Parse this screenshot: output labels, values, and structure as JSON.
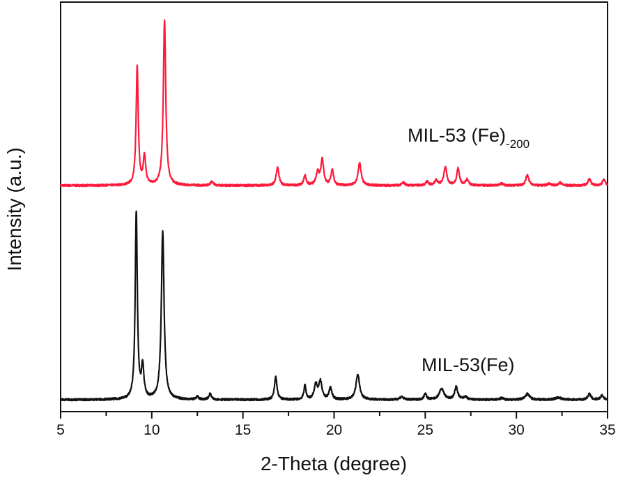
{
  "chart_data": {
    "type": "line",
    "xlabel": "2-Theta (degree)",
    "ylabel": "Intensity (a.u.)",
    "xlim": [
      5,
      35
    ],
    "ylim": [
      0,
      100
    ],
    "xticks": [
      5,
      10,
      15,
      20,
      25,
      30,
      35
    ],
    "minor_xtick_step": 2.5,
    "yticks": [],
    "grid": false,
    "legend": "none (inline labels)",
    "series": [
      {
        "name": "MIL-53 (Fe)",
        "name_subscript": "-200",
        "color": "#ff1a3c",
        "baseline": 55.2,
        "peaks": [
          [
            9.2,
            29.1,
            0.07
          ],
          [
            9.6,
            6.8,
            0.08
          ],
          [
            10.7,
            40.2,
            0.08
          ],
          [
            13.3,
            0.9,
            0.1
          ],
          [
            16.9,
            4.4,
            0.09
          ],
          [
            18.4,
            2.4,
            0.08
          ],
          [
            19.1,
            3.1,
            0.1
          ],
          [
            19.35,
            6.3,
            0.09
          ],
          [
            19.9,
            3.9,
            0.08
          ],
          [
            21.4,
            5.5,
            0.1
          ],
          [
            23.8,
            0.7,
            0.1
          ],
          [
            25.1,
            0.9,
            0.1
          ],
          [
            25.6,
            1.2,
            0.1
          ],
          [
            26.1,
            4.4,
            0.1
          ],
          [
            26.8,
            4.1,
            0.09
          ],
          [
            27.3,
            1.4,
            0.1
          ],
          [
            29.2,
            0.5,
            0.1
          ],
          [
            30.6,
            2.6,
            0.1
          ],
          [
            31.8,
            0.5,
            0.1
          ],
          [
            32.4,
            0.7,
            0.1
          ],
          [
            34.0,
            1.5,
            0.1
          ],
          [
            34.8,
            1.4,
            0.1
          ]
        ]
      },
      {
        "name": "MIL-53(Fe)",
        "name_subscript": "",
        "color": "#111111",
        "baseline": 2.9,
        "peaks": [
          [
            9.15,
            45.7,
            0.07
          ],
          [
            9.5,
            7.7,
            0.08
          ],
          [
            10.6,
            41.0,
            0.09
          ],
          [
            12.5,
            0.7,
            0.08
          ],
          [
            13.2,
            1.4,
            0.08
          ],
          [
            16.8,
            5.6,
            0.08
          ],
          [
            18.4,
            3.4,
            0.07
          ],
          [
            19.0,
            3.7,
            0.1
          ],
          [
            19.25,
            4.3,
            0.1
          ],
          [
            19.8,
            2.9,
            0.09
          ],
          [
            21.3,
            6.1,
            0.12
          ],
          [
            23.7,
            0.7,
            0.12
          ],
          [
            25.0,
            1.5,
            0.08
          ],
          [
            25.9,
            2.7,
            0.15
          ],
          [
            26.7,
            3.1,
            0.1
          ],
          [
            27.2,
            0.7,
            0.1
          ],
          [
            29.2,
            0.4,
            0.1
          ],
          [
            30.6,
            1.4,
            0.15
          ],
          [
            32.3,
            0.5,
            0.2
          ],
          [
            34.0,
            1.4,
            0.1
          ],
          [
            34.7,
            1.0,
            0.1
          ]
        ]
      }
    ]
  }
}
